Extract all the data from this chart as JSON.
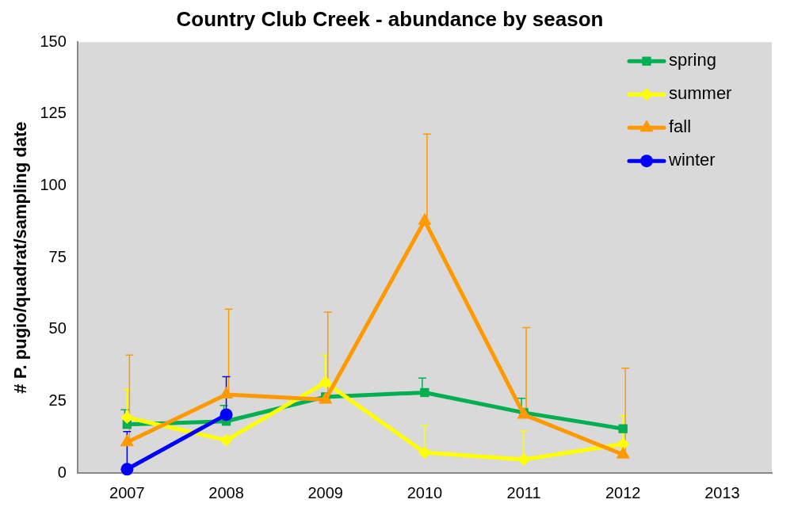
{
  "chart_data": {
    "type": "line",
    "title": "Country Club Creek - abundance by season",
    "ylabel": "# P. pugio/quadrat/sampling date",
    "categories": [
      "2007",
      "2008",
      "2009",
      "2010",
      "2011",
      "2012",
      "2013"
    ],
    "ylim": [
      0,
      150
    ],
    "yticks": [
      0,
      25,
      50,
      75,
      100,
      125,
      150
    ],
    "grid": false,
    "legend": "top right",
    "series": [
      {
        "name": "spring",
        "color": "#00b050",
        "marker": "square",
        "values": [
          16.9,
          18,
          26.5,
          28,
          21,
          15.4,
          null
        ],
        "errors": [
          [
            16.9,
            22
          ],
          [
            18,
            23.5
          ],
          null,
          [
            28,
            33
          ],
          [
            21,
            26
          ],
          null,
          null
        ]
      },
      {
        "name": "summer",
        "color": "#ffff00",
        "marker": "diamond",
        "values": [
          19.3,
          11.4,
          31.5,
          7.1,
          4.7,
          10.1,
          null
        ],
        "errors": [
          [
            19.3,
            29
          ],
          null,
          [
            31.5,
            41
          ],
          [
            7.1,
            16.4
          ],
          [
            4.7,
            14.6
          ],
          [
            10.1,
            20
          ],
          null
        ]
      },
      {
        "name": "fall",
        "color": "#ff9900",
        "marker": "triangle",
        "values": [
          10.7,
          27.3,
          25.5,
          87.8,
          20.3,
          6.4,
          null
        ],
        "errors": [
          [
            10.7,
            41
          ],
          [
            27.3,
            57
          ],
          [
            25.5,
            56
          ],
          [
            87.8,
            118
          ],
          [
            20.3,
            50.6
          ],
          [
            6.4,
            36.5
          ],
          null
        ]
      },
      {
        "name": "winter",
        "color": "#0000ff",
        "marker": "circle",
        "values": [
          1.3,
          20.3,
          null,
          null,
          null,
          null,
          null
        ],
        "errors": [
          [
            1.3,
            14.4
          ],
          [
            20.3,
            33.5
          ],
          null,
          null,
          null,
          null,
          null
        ]
      }
    ]
  }
}
